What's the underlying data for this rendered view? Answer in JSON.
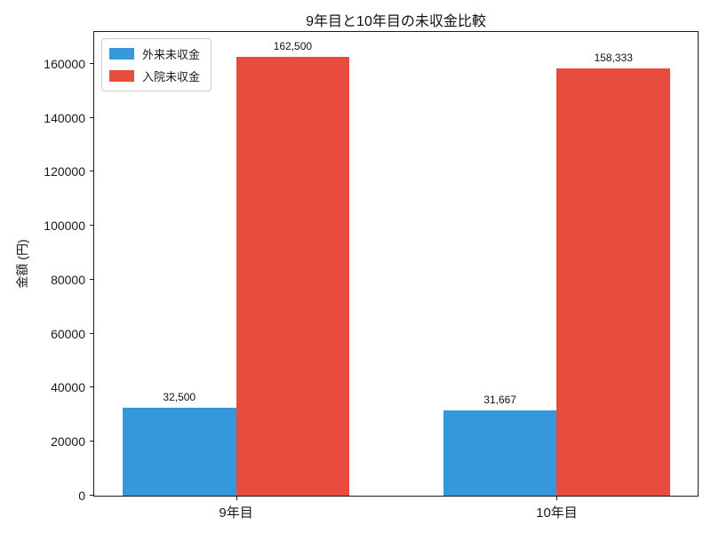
{
  "chart_data": {
    "type": "bar",
    "title": "9年目と10年目の未収金比較",
    "xlabel": "",
    "ylabel": "金額 (円)",
    "categories": [
      "9年目",
      "10年目"
    ],
    "series": [
      {
        "name": "外来未収金",
        "color": "#3498db",
        "values": [
          32500,
          31667
        ],
        "labels": [
          "32,500",
          "31,667"
        ]
      },
      {
        "name": "入院未収金",
        "color": "#e74c3c",
        "values": [
          162500,
          158333
        ],
        "labels": [
          "162,500",
          "158,333"
        ]
      }
    ],
    "yticks": [
      0,
      20000,
      40000,
      60000,
      80000,
      100000,
      120000,
      140000,
      160000
    ],
    "ylim": [
      0,
      171800
    ],
    "grid": false,
    "legend_position": "upper left",
    "bar_value_labels": true,
    "background": "#ffffff",
    "axis_color": "#1a1a1a"
  }
}
